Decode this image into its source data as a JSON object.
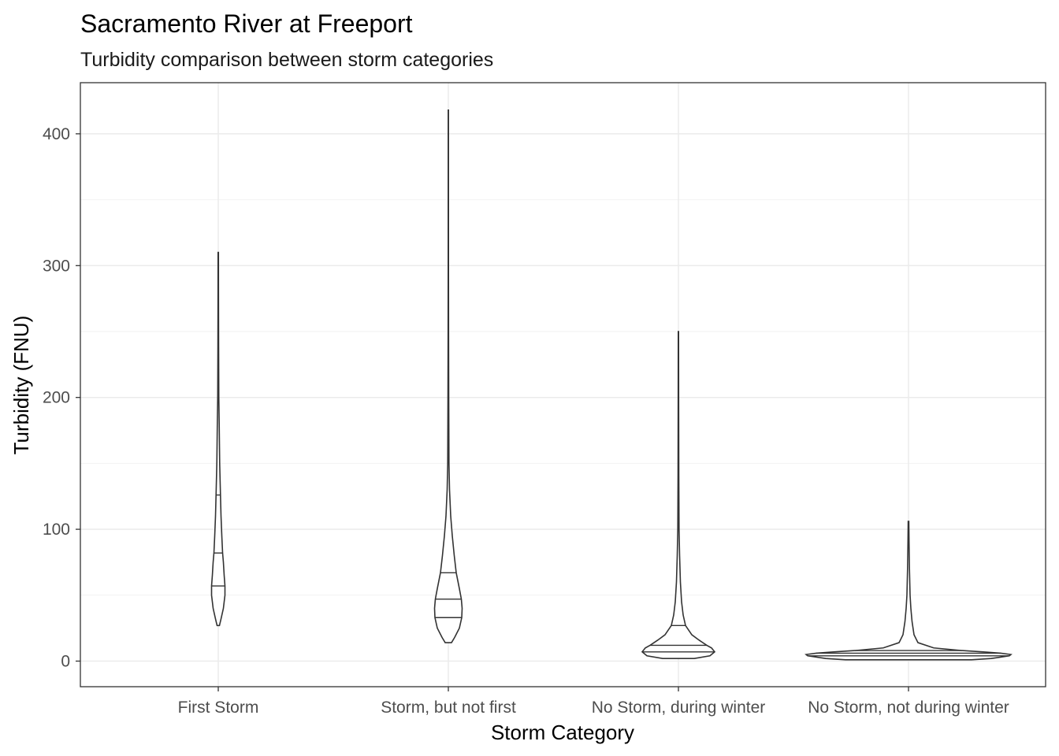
{
  "chart_data": {
    "type": "violin",
    "title": "Sacramento River at Freeport",
    "subtitle": "Turbidity comparison between storm categories",
    "xlabel": "Storm Category",
    "ylabel": "Turbidity (FNU)",
    "ylim": [
      -20,
      438
    ],
    "yticks": [
      0,
      100,
      200,
      300,
      400
    ],
    "grid": true,
    "categories": [
      "First Storm",
      "Storm, but not first",
      "No Storm, during winter",
      "No Storm, not during winter"
    ],
    "violins": [
      {
        "category": "First Storm",
        "min": 27,
        "max": 310,
        "quantiles": [
          57,
          82,
          126
        ],
        "density": [
          [
            27,
            1.5
          ],
          [
            32,
            3.5
          ],
          [
            40,
            6.5
          ],
          [
            50,
            8.5
          ],
          [
            57,
            8.5
          ],
          [
            65,
            7.5
          ],
          [
            75,
            6.5
          ],
          [
            82,
            5.5
          ],
          [
            95,
            4.5
          ],
          [
            110,
            3.5
          ],
          [
            126,
            2.8
          ],
          [
            150,
            1.8
          ],
          [
            180,
            1.2
          ],
          [
            200,
            0.7
          ],
          [
            240,
            0.45
          ],
          [
            280,
            0.3
          ],
          [
            310,
            0.25
          ]
        ]
      },
      {
        "category": "Storm, but not first",
        "min": 14,
        "max": 418,
        "quantiles": [
          33,
          47,
          67
        ],
        "density": [
          [
            14,
            4
          ],
          [
            18,
            8
          ],
          [
            25,
            14
          ],
          [
            33,
            17
          ],
          [
            40,
            17.5
          ],
          [
            47,
            16.5
          ],
          [
            55,
            14
          ],
          [
            67,
            10
          ],
          [
            80,
            7.5
          ],
          [
            95,
            5
          ],
          [
            110,
            3
          ],
          [
            130,
            1.5
          ],
          [
            150,
            0.8
          ],
          [
            200,
            0.5
          ],
          [
            250,
            0.3
          ],
          [
            300,
            0.2
          ],
          [
            418,
            0.15
          ]
        ]
      },
      {
        "category": "No Storm, during winter",
        "min": 2,
        "max": 250,
        "quantiles": [
          7,
          12,
          27
        ],
        "density": [
          [
            2,
            20
          ],
          [
            4,
            40
          ],
          [
            7,
            46
          ],
          [
            10,
            42
          ],
          [
            12,
            36
          ],
          [
            16,
            26
          ],
          [
            20,
            17
          ],
          [
            27,
            9
          ],
          [
            35,
            6
          ],
          [
            45,
            4
          ],
          [
            60,
            2.5
          ],
          [
            80,
            1.5
          ],
          [
            100,
            0.8
          ],
          [
            140,
            0.5
          ],
          [
            200,
            0.3
          ],
          [
            250,
            0.2
          ]
        ]
      },
      {
        "category": "No Storm, not during winter",
        "min": 1,
        "max": 106,
        "quantiles": [
          4,
          6,
          8
        ],
        "density": [
          [
            1,
            80
          ],
          [
            2,
            105
          ],
          [
            4,
            128
          ],
          [
            5,
            130
          ],
          [
            6,
            117
          ],
          [
            7,
            95
          ],
          [
            8,
            68
          ],
          [
            10,
            32
          ],
          [
            14,
            12
          ],
          [
            20,
            7
          ],
          [
            30,
            4.5
          ],
          [
            40,
            3
          ],
          [
            50,
            2
          ],
          [
            70,
            1.2
          ],
          [
            90,
            0.7
          ],
          [
            106,
            0.4
          ]
        ]
      }
    ]
  }
}
